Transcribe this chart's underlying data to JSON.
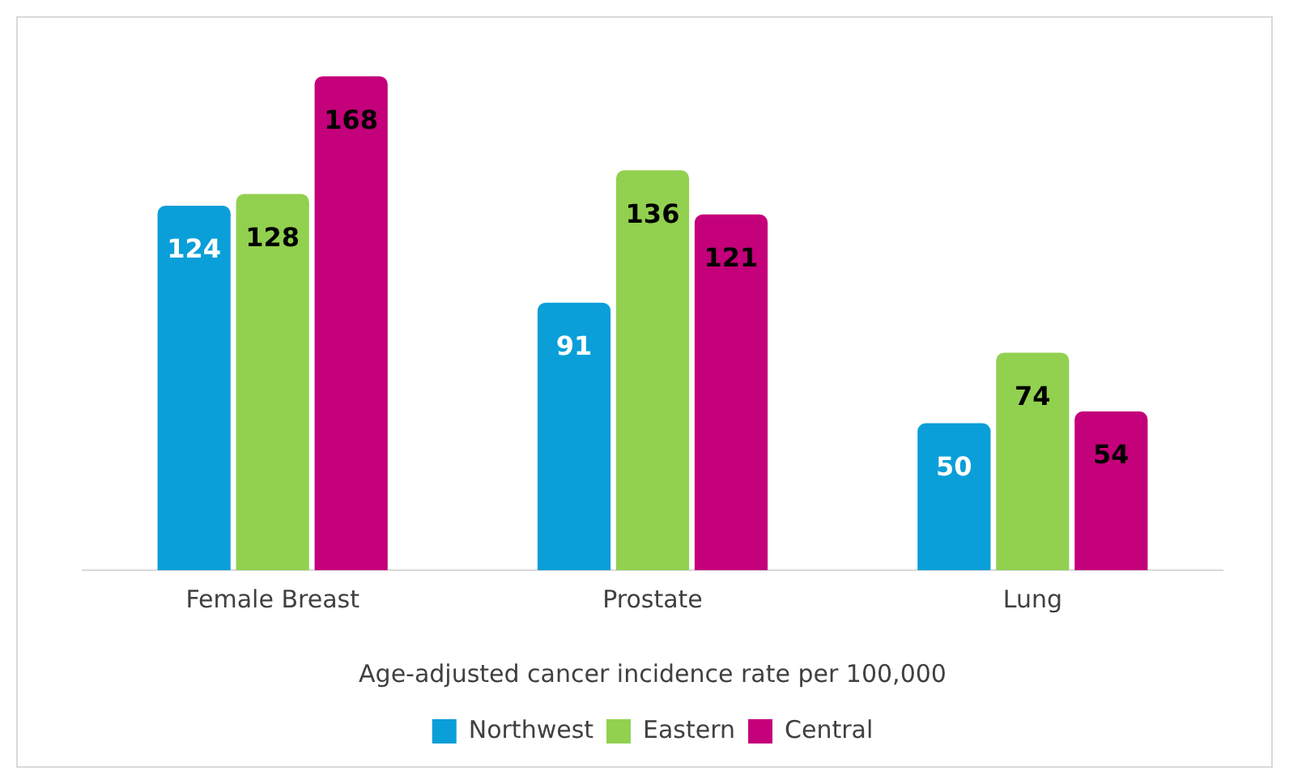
{
  "chart_data": {
    "type": "bar",
    "xlabel": "Age-adjusted cancer incidence rate per 100,000",
    "categories": [
      "Female Breast",
      "Prostate",
      "Lung"
    ],
    "series": [
      {
        "name": "Northwest",
        "color": "#0a9fd8",
        "values": [
          124,
          91,
          50
        ]
      },
      {
        "name": "Eastern",
        "color": "#92d050",
        "values": [
          128,
          136,
          74
        ]
      },
      {
        "name": "Central",
        "color": "#c4007a",
        "values": [
          168,
          121,
          54
        ]
      }
    ],
    "data_labels": true,
    "legend": "bottom",
    "grid": false
  }
}
